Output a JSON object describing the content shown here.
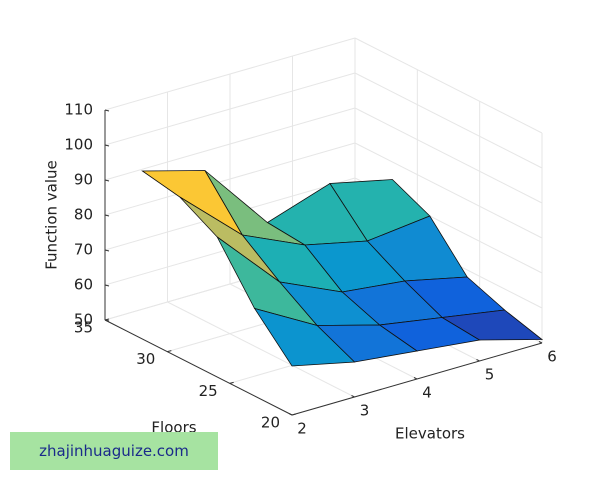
{
  "chart_data": {
    "type": "surface",
    "xlabel": "Elevators",
    "ylabel": "Floors",
    "zlabel": "Function value",
    "x": [
      2,
      3,
      4,
      5,
      6
    ],
    "y": [
      20,
      23,
      26,
      29,
      32
    ],
    "z": [
      [
        64,
        60,
        58,
        56,
        51
      ],
      [
        75,
        65,
        60,
        57,
        54
      ],
      [
        90,
        72,
        64,
        62,
        58
      ],
      [
        96,
        80,
        72,
        68,
        70
      ],
      [
        98,
        93,
        73,
        79,
        75
      ]
    ],
    "xlim": [
      2,
      6
    ],
    "ylim": [
      20,
      35
    ],
    "zlim": [
      50,
      110
    ],
    "xticks": [
      2,
      3,
      4,
      5,
      6
    ],
    "yticks": [
      20,
      25,
      30,
      35
    ],
    "zticks": [
      50,
      60,
      70,
      80,
      90,
      100,
      110
    ],
    "grid": true,
    "colormap": "parula"
  },
  "watermark": "zhajinhuaguize.com"
}
